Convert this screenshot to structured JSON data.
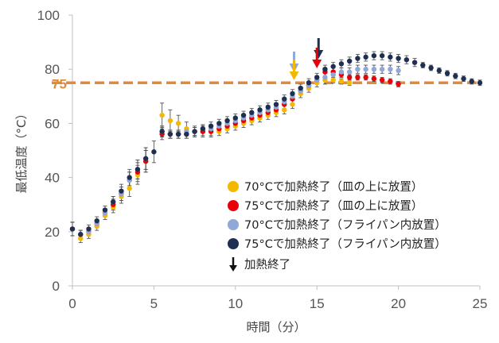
{
  "chart_data": {
    "type": "scatter",
    "xlabel": "時間（分）",
    "ylabel": "最低温度（°C）",
    "xlim": [
      0,
      25
    ],
    "ylim": [
      0,
      100
    ],
    "x_ticks": [
      "0",
      "5",
      "10",
      "15",
      "20",
      "25"
    ],
    "y_ticks": [
      "0",
      "20",
      "40",
      "60",
      "80",
      "100"
    ],
    "grid": false,
    "legend_position": "bottom-right",
    "reference_line": {
      "y": 75,
      "label": "75",
      "color": "#e08a3c",
      "style": "dashed"
    },
    "series": [
      {
        "name": "70°Cで加熱終了（皿の上に放置）",
        "color": "#f5b800",
        "arrow_x": 13.6,
        "arrow_color": "#f5b800",
        "points": [
          [
            0,
            21,
            2.5
          ],
          [
            0.5,
            17.5,
            1.5
          ],
          [
            1,
            19,
            1.5
          ],
          [
            1.5,
            22,
            1.5
          ],
          [
            2,
            26,
            1.5
          ],
          [
            2.5,
            29,
            2
          ],
          [
            3,
            33,
            2.5
          ],
          [
            3.5,
            36,
            3
          ],
          [
            4,
            41,
            3.5
          ],
          [
            4.5,
            46,
            4
          ],
          [
            5.5,
            63,
            4.5
          ],
          [
            6,
            61,
            4
          ],
          [
            6.5,
            60,
            3
          ],
          [
            7,
            58,
            2.5
          ],
          [
            7.5,
            57,
            2
          ],
          [
            8,
            57,
            2
          ],
          [
            8.5,
            57,
            2
          ],
          [
            9,
            57,
            1.5
          ],
          [
            9.5,
            58,
            1.5
          ],
          [
            10,
            59,
            1.5
          ],
          [
            10.5,
            60,
            1.5
          ],
          [
            11,
            61,
            1.5
          ],
          [
            11.5,
            62,
            1.5
          ],
          [
            12,
            63,
            1.5
          ],
          [
            12.5,
            64,
            1.5
          ],
          [
            13,
            65,
            1.5
          ],
          [
            13.5,
            67,
            1.5
          ],
          [
            14,
            71,
            1.5
          ],
          [
            14.5,
            73,
            1.5
          ],
          [
            15,
            75,
            1.5
          ],
          [
            15.5,
            76,
            1.5
          ],
          [
            16,
            76,
            1
          ],
          [
            16.5,
            75.5,
            1
          ],
          [
            17,
            75,
            1
          ]
        ]
      },
      {
        "name": "75°Cで加熱終了（皿の上に放置）",
        "color": "#e8000b",
        "arrow_x": 15,
        "arrow_color": "#e8000b",
        "points": [
          [
            0,
            21,
            2.5
          ],
          [
            0.5,
            19,
            1.5
          ],
          [
            1,
            20,
            1.5
          ],
          [
            1.5,
            23,
            1.5
          ],
          [
            2,
            27,
            1.5
          ],
          [
            2.5,
            30,
            2
          ],
          [
            3,
            34,
            2.5
          ],
          [
            3.5,
            39,
            3
          ],
          [
            4,
            42,
            3.5
          ],
          [
            4.5,
            46,
            4
          ],
          [
            5.5,
            56,
            2
          ],
          [
            6,
            56,
            1.5
          ],
          [
            6.5,
            56,
            1.5
          ],
          [
            7,
            56,
            1.5
          ],
          [
            7.5,
            57,
            1.5
          ],
          [
            8,
            57,
            1.5
          ],
          [
            8.5,
            57,
            1.5
          ],
          [
            9,
            58,
            1.5
          ],
          [
            9.5,
            59,
            1.5
          ],
          [
            10,
            60,
            1.5
          ],
          [
            10.5,
            61,
            1.5
          ],
          [
            11,
            62,
            1.5
          ],
          [
            11.5,
            63,
            1.5
          ],
          [
            12,
            64,
            1.5
          ],
          [
            12.5,
            65,
            1.5
          ],
          [
            13,
            67,
            1.5
          ],
          [
            13.5,
            69,
            1.5
          ],
          [
            14,
            72,
            1.5
          ],
          [
            14.5,
            74,
            1.5
          ],
          [
            15,
            76,
            1.5
          ],
          [
            15.5,
            79,
            1.5
          ],
          [
            16,
            79,
            1.5
          ],
          [
            16.5,
            78,
            1
          ],
          [
            17,
            77,
            1
          ],
          [
            17.5,
            77,
            1
          ],
          [
            18,
            77,
            1
          ],
          [
            18.5,
            76.5,
            1
          ],
          [
            19,
            76,
            1
          ],
          [
            19.5,
            75.5,
            1
          ],
          [
            20,
            74.5,
            1
          ]
        ]
      },
      {
        "name": "70°Cで加熱終了（フライパン内放置）",
        "color": "#8fa8d8",
        "arrow_x": 13.6,
        "arrow_color": "#8fa8d8",
        "points": [
          [
            0,
            21,
            2.5
          ],
          [
            0.5,
            19,
            1.5
          ],
          [
            1,
            20,
            1.5
          ],
          [
            1.5,
            23,
            1.5
          ],
          [
            2,
            27,
            1.5
          ],
          [
            2.5,
            31,
            2
          ],
          [
            3,
            34,
            2.5
          ],
          [
            3.5,
            39,
            3
          ],
          [
            4,
            43,
            3.5
          ],
          [
            4.5,
            47,
            4
          ],
          [
            5.5,
            57,
            2
          ],
          [
            6,
            56,
            1.5
          ],
          [
            6.5,
            56,
            1.5
          ],
          [
            7,
            57,
            1.5
          ],
          [
            7.5,
            57,
            1.5
          ],
          [
            8,
            58,
            1.5
          ],
          [
            8.5,
            58,
            1.5
          ],
          [
            9,
            59,
            1.5
          ],
          [
            9.5,
            60,
            1.5
          ],
          [
            10,
            61,
            1.5
          ],
          [
            10.5,
            62,
            1.5
          ],
          [
            11,
            63,
            1.5
          ],
          [
            11.5,
            64,
            1.5
          ],
          [
            12,
            65,
            1.5
          ],
          [
            12.5,
            66,
            1.5
          ],
          [
            13,
            68,
            1.5
          ],
          [
            13.5,
            70,
            1.5
          ],
          [
            14,
            72,
            1.5
          ],
          [
            14.5,
            74,
            1.5
          ],
          [
            15,
            76,
            1.5
          ],
          [
            15.5,
            77,
            1.5
          ],
          [
            16,
            78,
            1.5
          ],
          [
            16.5,
            79,
            1.5
          ],
          [
            17,
            79,
            1.5
          ],
          [
            17.5,
            80,
            1.5
          ],
          [
            18,
            80,
            1.5
          ],
          [
            18.5,
            80,
            1.5
          ],
          [
            19,
            80,
            1.5
          ],
          [
            19.5,
            80,
            1.5
          ],
          [
            20,
            79.5,
            1.5
          ]
        ]
      },
      {
        "name": "75°Cで加熱終了（フライパン内放置）",
        "color": "#1f2f52",
        "arrow_x": 15.1,
        "arrow_color": "#1f2f52",
        "points": [
          [
            0,
            21,
            2.5
          ],
          [
            0.5,
            19,
            1.5
          ],
          [
            1,
            21,
            1.5
          ],
          [
            1.5,
            24,
            1.5
          ],
          [
            2,
            28,
            1.5
          ],
          [
            2.5,
            31,
            2
          ],
          [
            3,
            35,
            2.5
          ],
          [
            3.5,
            40,
            3
          ],
          [
            4,
            43,
            3.5
          ],
          [
            4.5,
            47,
            4
          ],
          [
            5,
            49.5,
            4
          ],
          [
            5.5,
            57,
            2
          ],
          [
            6,
            56,
            1.5
          ],
          [
            6.5,
            56,
            1.5
          ],
          [
            7,
            56,
            1.5
          ],
          [
            7.5,
            57,
            1.5
          ],
          [
            8,
            58,
            1.5
          ],
          [
            8.5,
            59,
            1.5
          ],
          [
            9,
            60,
            1.5
          ],
          [
            9.5,
            61,
            1.5
          ],
          [
            10,
            62,
            1.5
          ],
          [
            10.5,
            63,
            1.5
          ],
          [
            11,
            64,
            1.5
          ],
          [
            11.5,
            65,
            1.5
          ],
          [
            12,
            66,
            1.5
          ],
          [
            12.5,
            67,
            1.5
          ],
          [
            13,
            69,
            1.5
          ],
          [
            13.5,
            71,
            1.5
          ],
          [
            14,
            73,
            1.5
          ],
          [
            14.5,
            75,
            1.5
          ],
          [
            15,
            77,
            1.5
          ],
          [
            15.5,
            80,
            1.5
          ],
          [
            16,
            81,
            1.5
          ],
          [
            16.5,
            82,
            1.5
          ],
          [
            17,
            83,
            1.5
          ],
          [
            17.5,
            84,
            1.5
          ],
          [
            18,
            84.5,
            1.5
          ],
          [
            18.5,
            85,
            1.5
          ],
          [
            19,
            85,
            1.5
          ],
          [
            19.5,
            84.5,
            1.5
          ],
          [
            20,
            84,
            1.5
          ],
          [
            20.5,
            83.5,
            1.5
          ],
          [
            21,
            82.5,
            1.5
          ],
          [
            21.5,
            81.5,
            1
          ],
          [
            22,
            80.5,
            1
          ],
          [
            22.5,
            79.5,
            1
          ],
          [
            23,
            78.5,
            1
          ],
          [
            23.5,
            77.5,
            1
          ],
          [
            24,
            76.5,
            1
          ],
          [
            24.5,
            75.5,
            1
          ],
          [
            25,
            75,
            1
          ]
        ]
      }
    ],
    "legend_extra": {
      "label": "加熱終了",
      "icon": "down-arrow-icon",
      "color": "#111111"
    }
  }
}
